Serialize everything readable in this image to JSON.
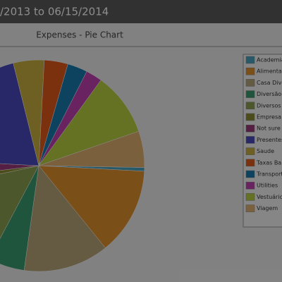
{
  "header": {
    "title": "/2013 to 06/15/2014"
  },
  "chart_data": {
    "type": "pie",
    "title": "Expenses - Pie Chart",
    "categories": [
      "Academia",
      "Alimentação",
      "Casa Diversos",
      "Diversão",
      "Diversos",
      "Empresa",
      "Not sure",
      "Presentes",
      "Saude",
      "Taxas Bancárias",
      "Transporte",
      "Utilities",
      "Vestuário",
      "Viagem"
    ],
    "values": [
      2,
      48,
      47,
      20,
      50,
      5,
      10,
      73,
      17,
      13,
      11,
      9,
      35,
      20
    ],
    "colors": [
      "#4aa3c0",
      "#e0922c",
      "#b8a478",
      "#3a9a70",
      "#8aa050",
      "#8a8a30",
      "#9a3a7a",
      "#4a4ac0",
      "#c9b040",
      "#e05a1a",
      "#1a7ab0",
      "#c040b0",
      "#b8d040",
      "#e0b070"
    ],
    "legend": "right"
  }
}
